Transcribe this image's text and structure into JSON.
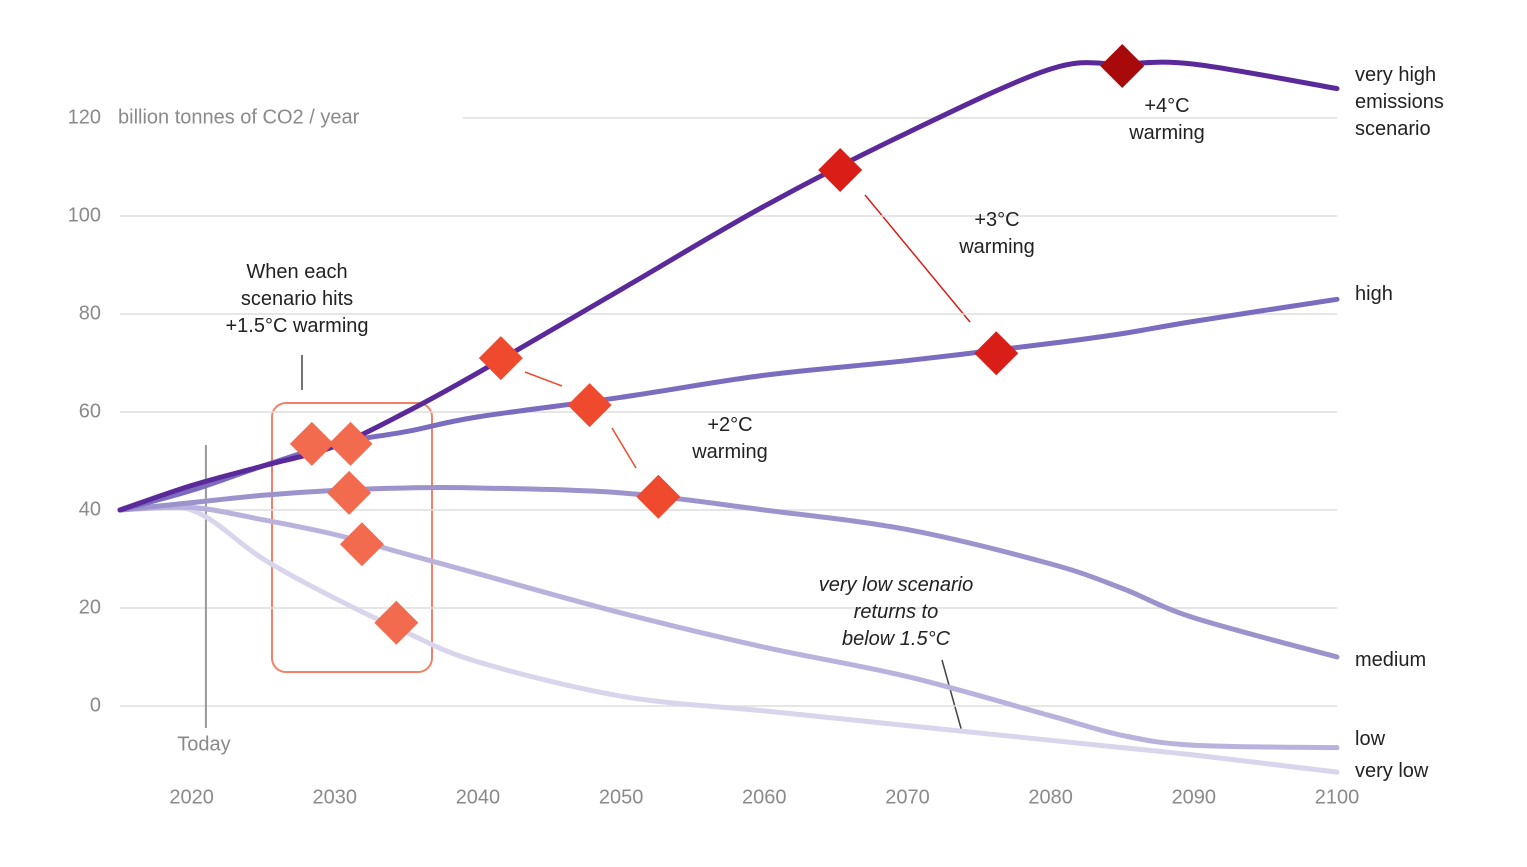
{
  "chart_data": {
    "type": "line",
    "y_axis_label": "billion tonnes of CO2 / year",
    "x": [
      2015,
      2020,
      2025,
      2030,
      2035,
      2040,
      2050,
      2060,
      2070,
      2080,
      2085,
      2090,
      2100
    ],
    "series": [
      {
        "name": "very high\nemissions\nscenario",
        "color": "#5b2a9a",
        "values": [
          40,
          45,
          49,
          53,
          60,
          68,
          85,
          102,
          117,
          130,
          131,
          131,
          126
        ]
      },
      {
        "name": "high",
        "color": "#7b6cc0",
        "values": [
          40,
          44,
          49,
          53.5,
          56,
          59,
          63,
          67.5,
          70.5,
          74,
          76,
          78.5,
          83
        ]
      },
      {
        "name": "medium",
        "color": "#9d93cc",
        "values": [
          40,
          41.5,
          43,
          44,
          44.5,
          44.5,
          43.5,
          40,
          36,
          29,
          24,
          18,
          10
        ]
      },
      {
        "name": "low",
        "color": "#b8b2dd",
        "values": [
          40,
          40.5,
          38,
          35,
          31,
          27,
          19,
          12,
          6,
          -2,
          -6,
          -8,
          -8.5
        ]
      },
      {
        "name": "very low",
        "color": "#d8d5ec",
        "values": [
          40,
          40,
          30,
          22,
          15,
          9,
          2,
          -1,
          -4,
          -7,
          -8.5,
          -10,
          -13.5
        ]
      }
    ],
    "markers": [
      {
        "x": 2028.4,
        "value": 53.5,
        "color": "#f26b4f"
      },
      {
        "x": 2031.1,
        "value": 53.5,
        "color": "#f26b4f"
      },
      {
        "x": 2031,
        "value": 43.5,
        "color": "#f26b4f"
      },
      {
        "x": 2031.9,
        "value": 33,
        "color": "#f26b4f"
      },
      {
        "x": 2034.3,
        "value": 17,
        "color": "#f26b4f"
      },
      {
        "x": 2041.6,
        "value": 71,
        "color": "#ef4a2e"
      },
      {
        "x": 2047.8,
        "value": 61.4,
        "color": "#ef4a2e"
      },
      {
        "x": 2052.6,
        "value": 42.7,
        "color": "#ef4a2e"
      },
      {
        "x": 2065.3,
        "value": 109.4,
        "color": "#d91e18"
      },
      {
        "x": 2076.2,
        "value": 72,
        "color": "#d91e18"
      },
      {
        "x": 2085,
        "value": 130.6,
        "color": "#a80a0c"
      }
    ],
    "annotations": [
      "When each\nscenario hits\n+1.5°C warming",
      "+2°C\nwarming",
      "+3°C\nwarming",
      "+4°C\nwarming",
      "very low scenario\nreturns to\nbelow 1.5°C"
    ],
    "today": {
      "x": 2021,
      "label": "Today"
    },
    "xlim": [
      2015,
      2100
    ],
    "ylim": [
      -18,
      135
    ],
    "xticks": [
      2020,
      2030,
      2040,
      2050,
      2060,
      2070,
      2080,
      2090,
      2100
    ],
    "yticks": [
      0,
      20,
      40,
      60,
      80,
      100,
      120
    ],
    "grid": true
  }
}
